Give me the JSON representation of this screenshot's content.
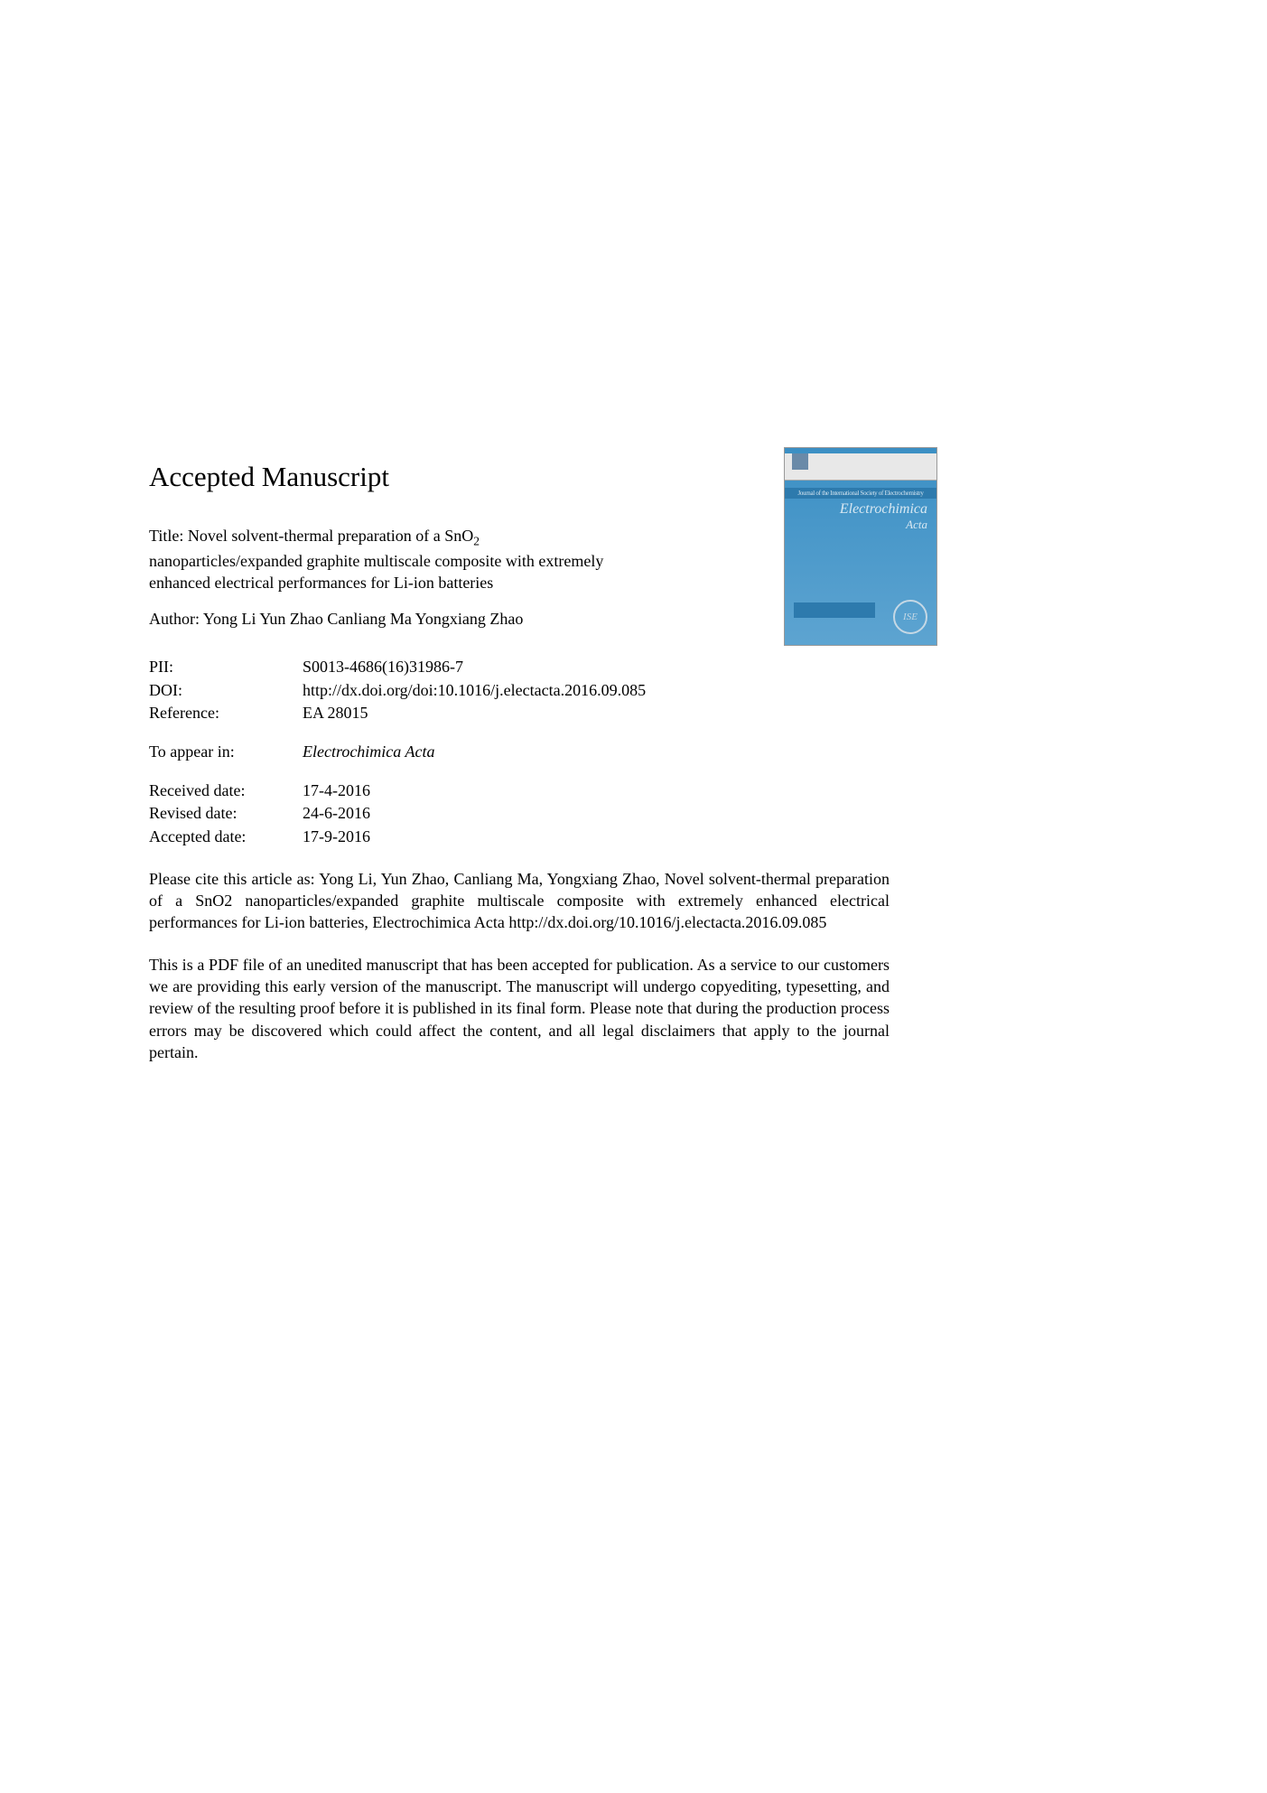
{
  "heading": "Accepted Manuscript",
  "title": {
    "prefix": "Title: Novel solvent-thermal preparation of a SnO",
    "subscript": "2",
    "suffix": " nanoparticles/expanded graphite multiscale composite with extremely enhanced electrical performances for Li-ion batteries"
  },
  "author_label": "Author:",
  "author_names": "Yong Li Yun Zhao Canliang Ma Yongxiang Zhao",
  "journal_cover": {
    "band_text": "Journal of the International Society of Electrochemistry",
    "title_line1": "Electrochimica",
    "title_line2": "Acta",
    "ise_text": "ISE",
    "colors": {
      "background": "#4a9cd0",
      "band": "#2d7aad",
      "text": "#d8e8f2"
    }
  },
  "metadata": {
    "pii": {
      "label": "PII:",
      "value": "S0013-4686(16)31986-7"
    },
    "doi": {
      "label": "DOI:",
      "value": "http://dx.doi.org/doi:10.1016/j.electacta.2016.09.085"
    },
    "reference": {
      "label": "Reference:",
      "value": "EA 28015"
    },
    "to_appear": {
      "label": "To appear in:",
      "value": "Electrochimica Acta"
    },
    "received": {
      "label": "Received date:",
      "value": "17-4-2016"
    },
    "revised": {
      "label": "Revised date:",
      "value": "24-6-2016"
    },
    "accepted": {
      "label": "Accepted date:",
      "value": "17-9-2016"
    }
  },
  "citation": "Please cite this article as: Yong Li, Yun Zhao, Canliang Ma, Yongxiang Zhao, Novel solvent-thermal preparation of a SnO2 nanoparticles/expanded graphite multiscale composite with extremely enhanced electrical performances for Li-ion batteries, Electrochimica Acta http://dx.doi.org/10.1016/j.electacta.2016.09.085",
  "disclaimer": "This is a PDF file of an unedited manuscript that has been accepted for publication. As a service to our customers we are providing this early version of the manuscript. The manuscript will undergo copyediting, typesetting, and review of the resulting proof before it is published in its final form. Please note that during the production process errors may be discovered which could affect the content, and all legal disclaimers that apply to the journal pertain."
}
